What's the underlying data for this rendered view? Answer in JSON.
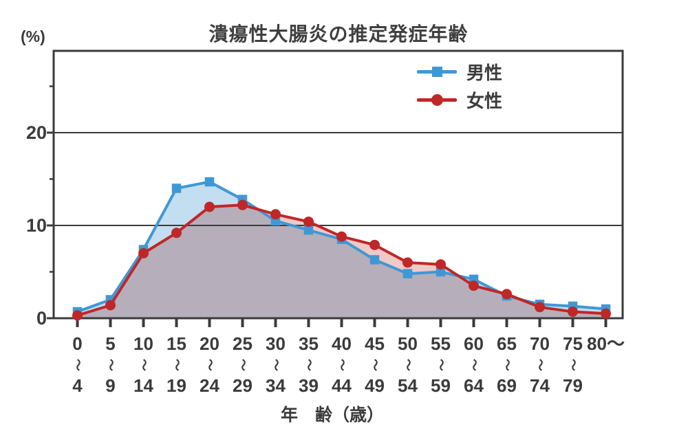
{
  "chart_data": {
    "type": "line",
    "title": "潰瘍性大腸炎の推定発症年齢",
    "y_axis_unit": "(%)",
    "x_axis_title": "年　齢（歳）",
    "ylim": [
      0,
      28
    ],
    "yticks_major": [
      0,
      10,
      20
    ],
    "yticks_minor": [
      5,
      15,
      25
    ],
    "gridline_values": [
      10,
      20
    ],
    "grid": "horizontal-major",
    "legend_position": "top-right",
    "axis_color": "#3b3b3b",
    "wave_char": "〜",
    "categories": [
      "0〜4",
      "5〜9",
      "10〜14",
      "15〜19",
      "20〜24",
      "25〜29",
      "30〜34",
      "35〜39",
      "40〜44",
      "45〜49",
      "50〜54",
      "55〜59",
      "60〜64",
      "65〜69",
      "70〜74",
      "75〜79",
      "80〜"
    ],
    "category_labels": [
      {
        "top": "0",
        "bottom": "4"
      },
      {
        "top": "5",
        "bottom": "9"
      },
      {
        "top": "10",
        "bottom": "14"
      },
      {
        "top": "15",
        "bottom": "19"
      },
      {
        "top": "20",
        "bottom": "24"
      },
      {
        "top": "25",
        "bottom": "29"
      },
      {
        "top": "30",
        "bottom": "34"
      },
      {
        "top": "35",
        "bottom": "39"
      },
      {
        "top": "40",
        "bottom": "44"
      },
      {
        "top": "45",
        "bottom": "49"
      },
      {
        "top": "50",
        "bottom": "54"
      },
      {
        "top": "55",
        "bottom": "59"
      },
      {
        "top": "60",
        "bottom": "64"
      },
      {
        "top": "65",
        "bottom": "69"
      },
      {
        "top": "70",
        "bottom": "74"
      },
      {
        "top": "75",
        "bottom": "79"
      },
      {
        "top": "80～",
        "bottom": ""
      }
    ],
    "series": [
      {
        "name": "男性",
        "marker": "square",
        "color": "#3f98d5",
        "fill": "#c3ddf1",
        "values": [
          0.7,
          2.0,
          7.4,
          14.0,
          14.7,
          12.8,
          10.5,
          9.5,
          8.5,
          6.3,
          4.8,
          5.0,
          4.2,
          2.4,
          1.5,
          1.3,
          1.0
        ]
      },
      {
        "name": "女性",
        "marker": "circle",
        "color": "#bf2728",
        "fill": "#eec9c6",
        "values": [
          0.3,
          1.4,
          7.0,
          9.2,
          12.0,
          12.2,
          11.2,
          10.4,
          8.8,
          7.9,
          6.0,
          5.8,
          3.5,
          2.6,
          1.2,
          0.7,
          0.5
        ]
      }
    ]
  }
}
